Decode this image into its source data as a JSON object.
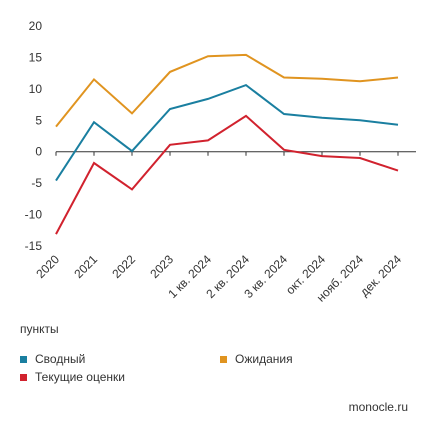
{
  "chart_data": {
    "type": "line",
    "categories": [
      "2020",
      "2021",
      "2022",
      "2023",
      "1 кв. 2024",
      "2 кв. 2024",
      "3 кв. 2024",
      "окт. 2024",
      "нояб. 2024",
      "дек. 2024"
    ],
    "ylim": [
      -15,
      20
    ],
    "yticks": [
      -15,
      -10,
      -5,
      0,
      5,
      10,
      15,
      20
    ],
    "ylabel": "пункты",
    "grid": false,
    "legend_position": "bottom",
    "series": [
      {
        "name": "Сводный",
        "color": "#1a7fa0",
        "values": [
          -4.6,
          4.7,
          0.1,
          6.8,
          8.4,
          10.6,
          6.0,
          5.4,
          5.0,
          4.3
        ]
      },
      {
        "name": "Ожидания",
        "color": "#e09420",
        "values": [
          4.0,
          11.5,
          6.1,
          12.7,
          15.2,
          15.4,
          11.8,
          11.6,
          11.2,
          11.8
        ]
      },
      {
        "name": "Текущие оценки",
        "color": "#d1222e",
        "values": [
          -13.1,
          -1.8,
          -6.0,
          1.1,
          1.8,
          5.7,
          0.3,
          -0.7,
          -1.0,
          -3.0
        ]
      }
    ]
  },
  "legend": {
    "items": [
      "Сводный",
      "Ожидания",
      "Текущие оценки"
    ]
  },
  "source": "monocle.ru"
}
